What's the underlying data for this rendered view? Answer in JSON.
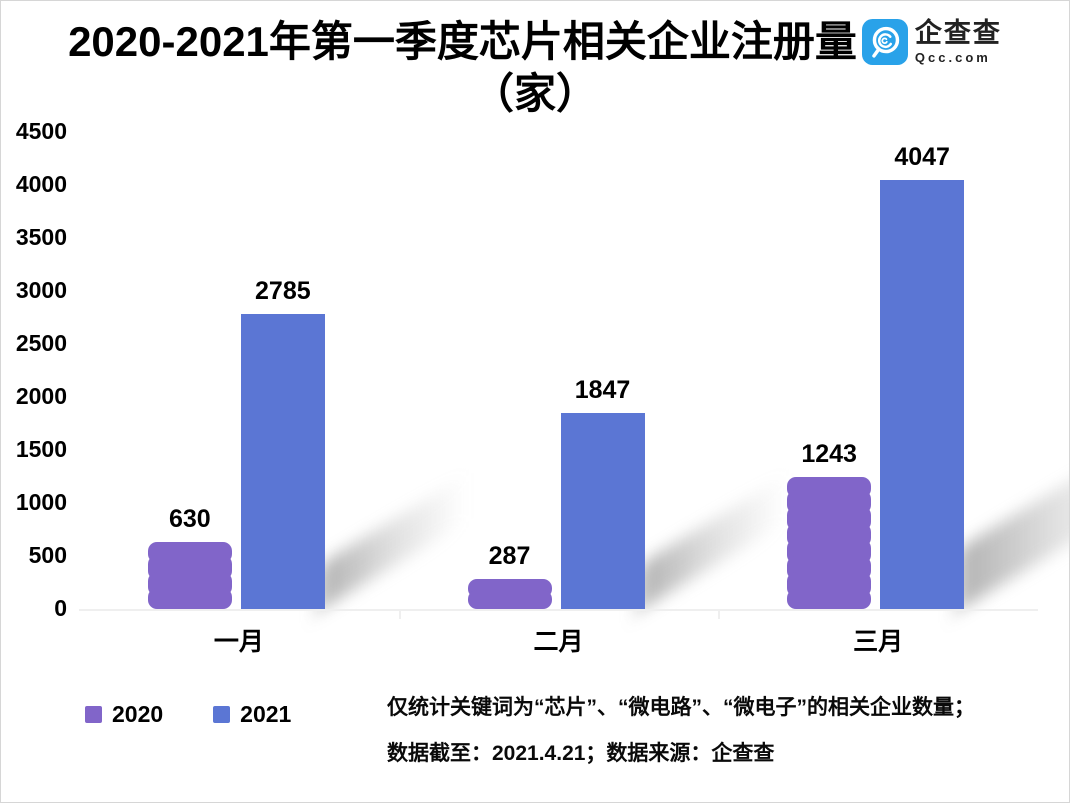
{
  "header": {
    "title_line1": "2020-2021年第一季度芯片相关企业注册量",
    "title_line2": "（家）",
    "logo": {
      "icon": "qcc-magnifier-q-icon",
      "name": "企查查",
      "domain": "Qcc.com",
      "brand_color": "#29a2e9"
    }
  },
  "chart_data": {
    "type": "bar",
    "title": "2020-2021年第一季度芯片相关企业注册量（家）",
    "categories": [
      "一月",
      "二月",
      "三月"
    ],
    "series": [
      {
        "name": "2020",
        "color": "#8165c9",
        "values": [
          630,
          287,
          1243
        ]
      },
      {
        "name": "2021",
        "color": "#5b76d4",
        "values": [
          2785,
          1847,
          4047
        ]
      }
    ],
    "ylim": [
      0,
      4500
    ],
    "ytick_step": 500,
    "yticks": [
      0,
      500,
      1000,
      1500,
      2000,
      2500,
      3000,
      3500,
      4000,
      4500
    ],
    "grid": false,
    "data_labels": true,
    "legend_position": "bottom-left",
    "axis_color": "#efefef"
  },
  "footer": {
    "line1": "仅统计关键词为“芯片”、“微电路”、“微电子”的相关企业数量；",
    "line2": "数据截至：2021.4.21；数据来源：企查查"
  }
}
